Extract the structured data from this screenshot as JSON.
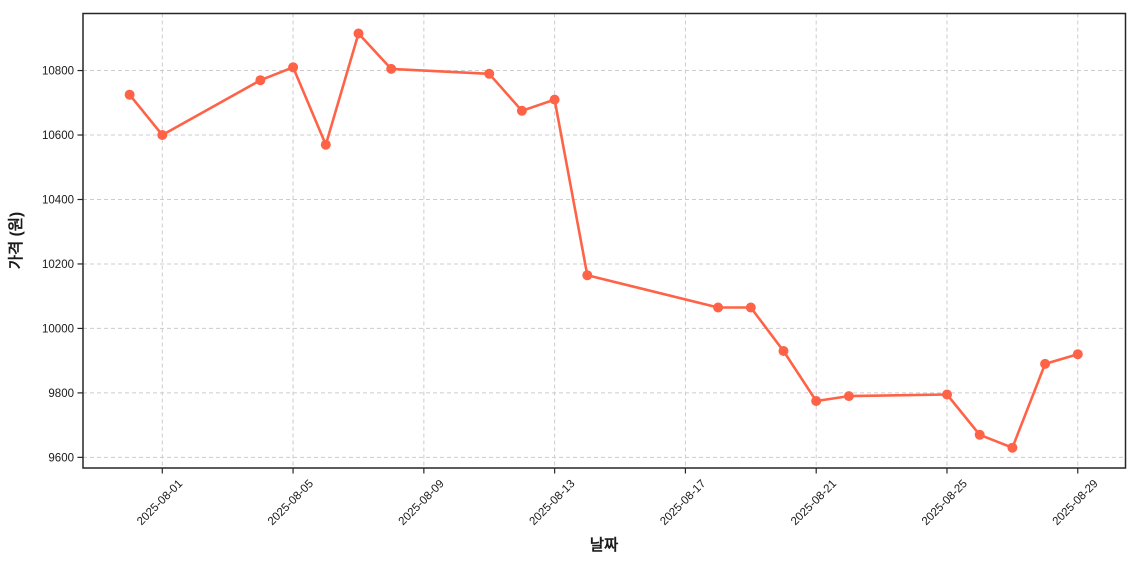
{
  "figure": {
    "background": "#ffffff"
  },
  "chart_data": {
    "type": "line",
    "title": "",
    "xlabel": "날짜",
    "ylabel": "가격 (원)",
    "x": [
      "2025-07-31",
      "2025-08-01",
      "2025-08-04",
      "2025-08-05",
      "2025-08-06",
      "2025-08-07",
      "2025-08-08",
      "2025-08-11",
      "2025-08-12",
      "2025-08-13",
      "2025-08-14",
      "2025-08-18",
      "2025-08-19",
      "2025-08-20",
      "2025-08-21",
      "2025-08-22",
      "2025-08-25",
      "2025-08-26",
      "2025-08-27",
      "2025-08-28",
      "2025-08-29"
    ],
    "values": [
      10725,
      10600,
      10770,
      10810,
      10570,
      10915,
      10805,
      10790,
      10675,
      10710,
      10165,
      10065,
      10065,
      9930,
      9775,
      9790,
      9795,
      9670,
      9630,
      9890,
      9920
    ],
    "x_ticks": [
      "2025-08-01",
      "2025-08-05",
      "2025-08-09",
      "2025-08-13",
      "2025-08-17",
      "2025-08-21",
      "2025-08-25",
      "2025-08-29"
    ],
    "y_ticks": [
      9600,
      9800,
      10000,
      10200,
      10400,
      10600,
      10800
    ],
    "ylim": [
      9567,
      10977
    ],
    "xlim": [
      "2025-07-29",
      "2025-08-30"
    ],
    "grid": true,
    "grid_style": "dashed",
    "legend": "none",
    "marker": "circle",
    "line_color": "#FF6347",
    "grid_color": "#cccccc",
    "axis_color": "#262626",
    "text_color": "#1a1a1a"
  }
}
